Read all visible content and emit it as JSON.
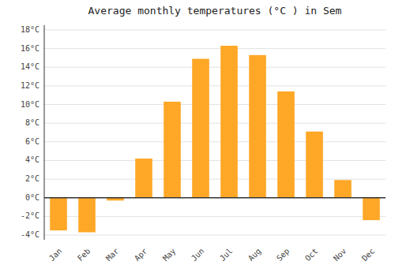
{
  "chart_data": {
    "type": "bar",
    "title": "Average monthly temperatures (°C ) in Sem",
    "categories": [
      "Jan",
      "Feb",
      "Mar",
      "Apr",
      "May",
      "Jun",
      "Jul",
      "Aug",
      "Sep",
      "Oct",
      "Nov",
      "Dec"
    ],
    "values": [
      -3.5,
      -3.7,
      -0.3,
      4.2,
      10.3,
      14.9,
      16.3,
      15.3,
      11.4,
      7.1,
      1.9,
      -2.4
    ],
    "color": "#FFA726",
    "ylim": [
      -4.5,
      18.5
    ],
    "yticks": [
      {
        "value": -4,
        "label": "-4°C"
      },
      {
        "value": -2,
        "label": "-2°C"
      },
      {
        "value": 0,
        "label": "0°C"
      },
      {
        "value": 2,
        "label": "2°C"
      },
      {
        "value": 4,
        "label": "4°C"
      },
      {
        "value": 6,
        "label": "6°C"
      },
      {
        "value": 8,
        "label": "8°C"
      },
      {
        "value": 10,
        "label": "10°C"
      },
      {
        "value": 12,
        "label": "12°C"
      },
      {
        "value": 14,
        "label": "14°C"
      },
      {
        "value": 16,
        "label": "16°C"
      },
      {
        "value": 18,
        "label": "18°C"
      }
    ],
    "grid": true
  }
}
